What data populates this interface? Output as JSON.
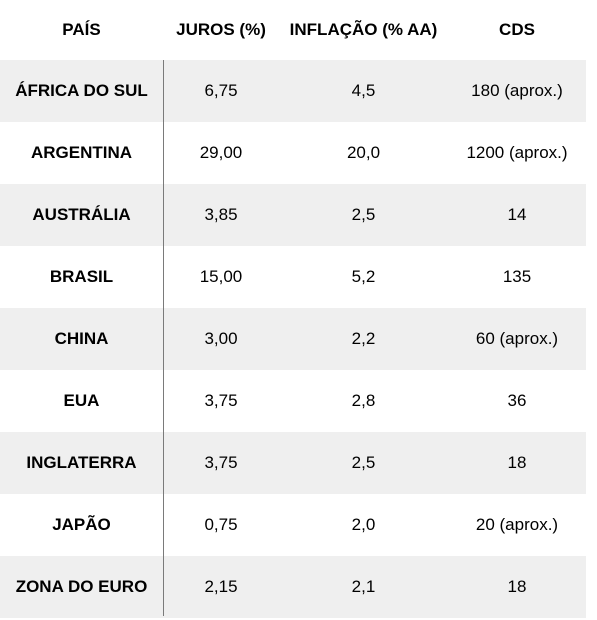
{
  "headers": {
    "country": "PAÍS",
    "juros": "JUROS (%)",
    "inflacao": "INFLAÇÃO (% AA)",
    "cds": "CDS"
  },
  "rows": [
    {
      "country": "ÁFRICA DO SUL",
      "juros": "6,75",
      "inflacao": "4,5",
      "cds": "180 (aprox.)"
    },
    {
      "country": "ARGENTINA",
      "juros": "29,00",
      "inflacao": "20,0",
      "cds": "1200 (aprox.)"
    },
    {
      "country": "AUSTRÁLIA",
      "juros": "3,85",
      "inflacao": "2,5",
      "cds": "14"
    },
    {
      "country": "BRASIL",
      "juros": "15,00",
      "inflacao": "5,2",
      "cds": "135"
    },
    {
      "country": "CHINA",
      "juros": "3,00",
      "inflacao": "2,2",
      "cds": "60 (aprox.)"
    },
    {
      "country": "EUA",
      "juros": "3,75",
      "inflacao": "2,8",
      "cds": "36"
    },
    {
      "country": "INGLATERRA",
      "juros": "3,75",
      "inflacao": "2,5",
      "cds": "18"
    },
    {
      "country": "JAPÃO",
      "juros": "0,75",
      "inflacao": "2,0",
      "cds": "20 (aprox.)"
    },
    {
      "country": "ZONA DO EURO",
      "juros": "2,15",
      "inflacao": "2,1",
      "cds": "18"
    }
  ]
}
